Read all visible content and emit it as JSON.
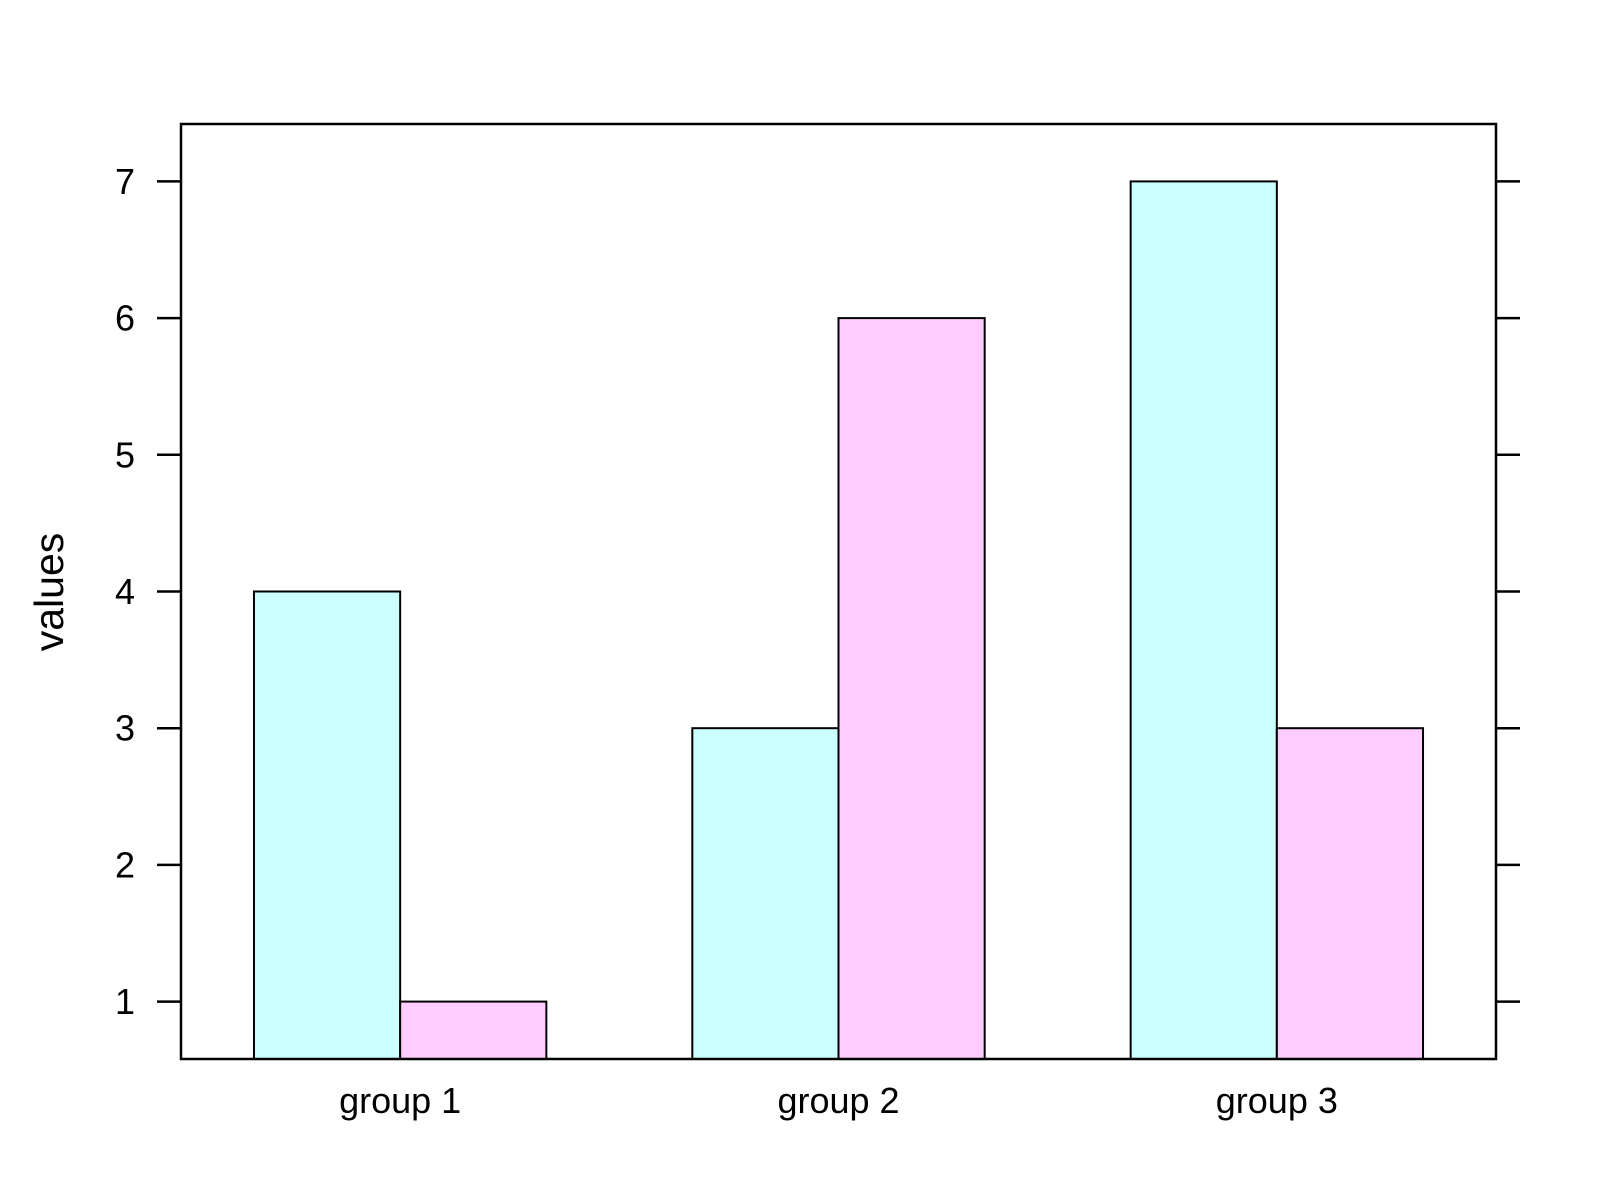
{
  "chart_data": {
    "type": "bar",
    "categories": [
      "group 1",
      "group 2",
      "group 3"
    ],
    "series": [
      {
        "values": [
          4,
          3,
          7
        ],
        "color": "#ccffff"
      },
      {
        "values": [
          1,
          6,
          3
        ],
        "color": "#ffccff"
      }
    ],
    "ylabel": "values",
    "yticks": [
      1,
      2,
      3,
      4,
      5,
      6,
      7
    ],
    "ylim": [
      0.58,
      7.42
    ],
    "grid": false,
    "legend": "none"
  }
}
